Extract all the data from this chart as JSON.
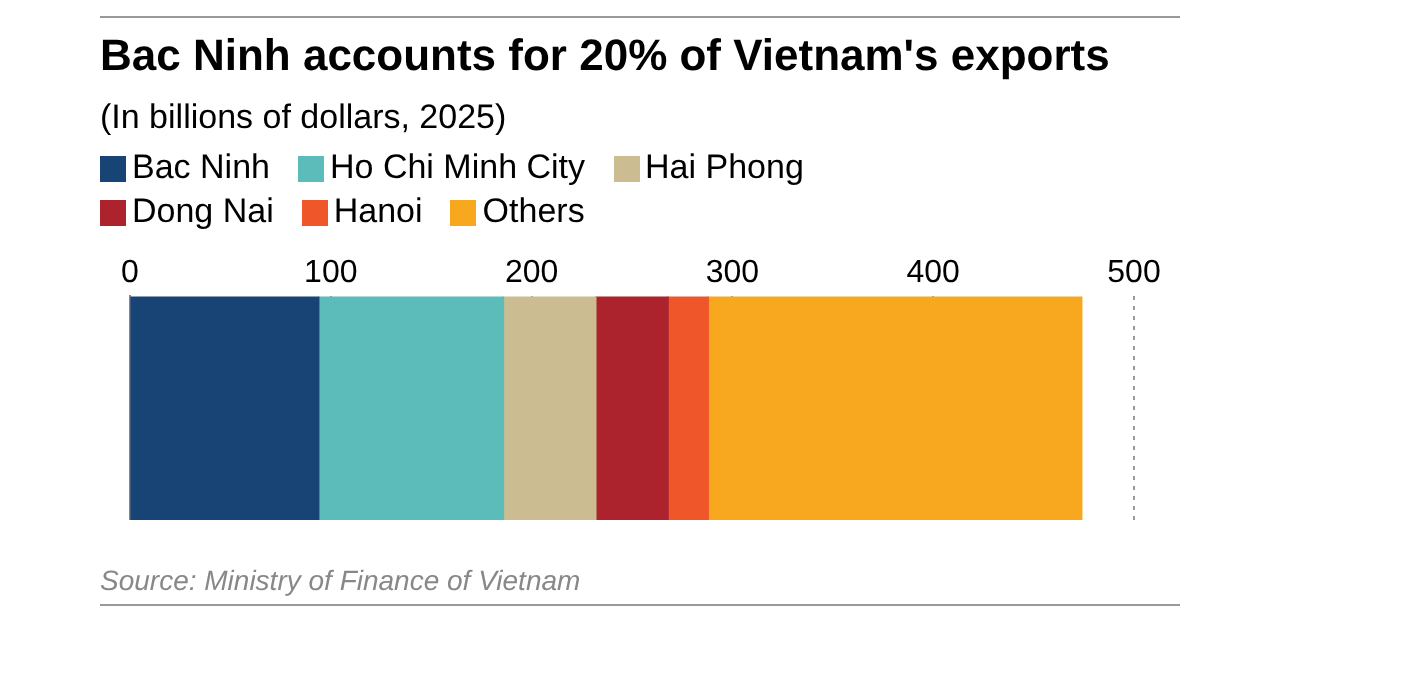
{
  "chart_data": {
    "type": "bar",
    "orientation": "horizontal",
    "stacked": true,
    "title": "Bac Ninh accounts for 20% of Vietnam's exports",
    "subtitle": "(In billions of dollars, 2025)",
    "categories": [
      null
    ],
    "series": [
      {
        "name": "Bac Ninh",
        "color": "#174475",
        "values": [
          94
        ]
      },
      {
        "name": "Ho Chi Minh City",
        "color": "#5bbcba",
        "values": [
          92
        ]
      },
      {
        "name": "Hai Phong",
        "color": "#cbbd91",
        "values": [
          46
        ]
      },
      {
        "name": "Dong Nai",
        "color": "#ac232d",
        "values": [
          36
        ]
      },
      {
        "name": "Hanoi",
        "color": "#ef572a",
        "values": [
          20
        ]
      },
      {
        "name": "Others",
        "color": "#f7a81e",
        "values": [
          186
        ]
      }
    ],
    "xlim": [
      0,
      500
    ],
    "xticks": [
      0,
      100,
      200,
      300,
      400,
      500
    ],
    "grid": "x",
    "legend": "top left",
    "annotations": [
      "Source: Ministry of Finance of Vietnam"
    ]
  }
}
